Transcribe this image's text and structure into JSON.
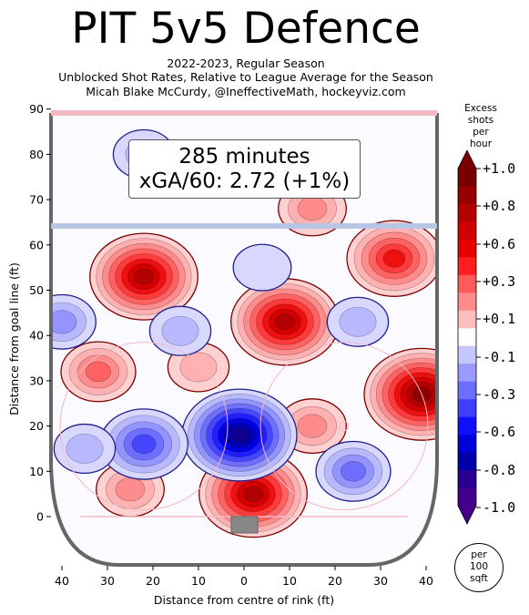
{
  "header": {
    "title": "PIT 5v5 Defence",
    "subtitle_line1": "2022-2023, Regular Season",
    "subtitle_line2": "Unblocked Shot Rates, Relative to League Average for the Season",
    "subtitle_line3": "Micah Blake McCurdy, @IneffectiveMath, hockeyviz.com"
  },
  "info_box": {
    "minutes": "285 minutes",
    "xga": "xGA/60: 2.72 (+1%)"
  },
  "colorbar": {
    "title_line1": "Excess",
    "title_line2": "shots",
    "title_line3": "per hour",
    "tick_labels": [
      "+1.0",
      "+0.8",
      "+0.6",
      "+0.3",
      "+0.1",
      "-0.1",
      "-0.3",
      "-0.6",
      "-0.8",
      "-1.0"
    ],
    "colors": [
      "#7a0000",
      "#980000",
      "#b30000",
      "#cf0000",
      "#e80000",
      "#ff1f1f",
      "#ff5a5a",
      "#ff8c8c",
      "#ffbdbd",
      "#ffffff",
      "#c7c7ff",
      "#9a9aff",
      "#6d6dff",
      "#3f3fff",
      "#1010ff",
      "#0000d8",
      "#0000a8",
      "#2a0090",
      "#45008a"
    ],
    "badge_line1": "per",
    "badge_line2": "100",
    "badge_line3": "sqft"
  },
  "chart_data": {
    "type": "heatmap",
    "title": "PIT 5v5 Defence",
    "xlabel": "Distance from centre of rink (ft)",
    "ylabel": "Distance from goal line (ft)",
    "x_ticks": [
      "40",
      "30",
      "20",
      "10",
      "0",
      "10",
      "20",
      "30",
      "40"
    ],
    "y_ticks": [
      "0",
      "10",
      "20",
      "30",
      "40",
      "50",
      "60",
      "70",
      "80",
      "90"
    ],
    "xlim": [
      -42.5,
      42.5
    ],
    "ylim": [
      -10,
      90
    ],
    "units": "Excess shots per hour per 100 sqft",
    "blobs": [
      {
        "x": -22,
        "y": 53,
        "value": 0.9
      },
      {
        "x": 9,
        "y": 43,
        "value": 0.9
      },
      {
        "x": 33,
        "y": 57,
        "value": 0.7
      },
      {
        "x": 39,
        "y": 27,
        "value": 1.0
      },
      {
        "x": 2,
        "y": 5,
        "value": 0.9
      },
      {
        "x": -32,
        "y": 32,
        "value": 0.4
      },
      {
        "x": 15,
        "y": 20,
        "value": 0.3
      },
      {
        "x": -25,
        "y": 6,
        "value": 0.3
      },
      {
        "x": 15,
        "y": 68,
        "value": 0.3
      },
      {
        "x": -10,
        "y": 33,
        "value": 0.2
      },
      {
        "x": -1,
        "y": 18,
        "value": -1.0
      },
      {
        "x": -22,
        "y": 16,
        "value": -0.6
      },
      {
        "x": 24,
        "y": 10,
        "value": -0.4
      },
      {
        "x": -22,
        "y": 80,
        "value": -0.2
      },
      {
        "x": -40,
        "y": 43,
        "value": -0.3
      },
      {
        "x": -14,
        "y": 41,
        "value": -0.2
      },
      {
        "x": 25,
        "y": 43,
        "value": -0.2
      },
      {
        "x": -35,
        "y": 15,
        "value": -0.2
      },
      {
        "x": 4,
        "y": 55,
        "value": -0.15
      }
    ]
  }
}
